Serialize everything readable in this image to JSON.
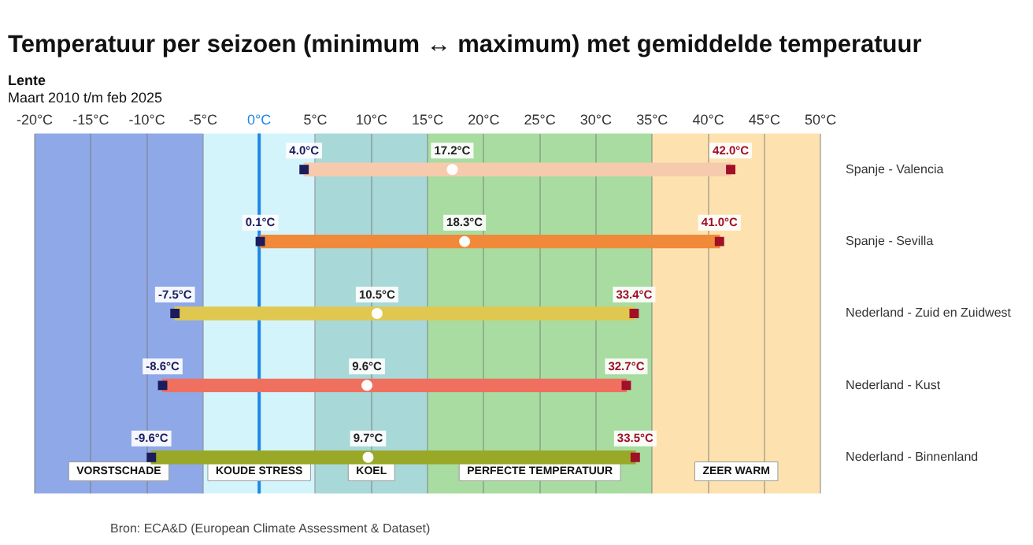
{
  "chart_data": {
    "type": "bar",
    "orientation": "horizontal",
    "title": "Temperatuur per seizoen (minimum ↔ maximum) met gemiddelde temperatuur",
    "subtitle": "Lente",
    "annotations": [
      "Maart 2010 t/m feb 2025",
      "Bron: ECA&D (European Climate Assessment & Dataset)"
    ],
    "categories": [
      "Spanje - Valencia",
      "Spanje - Sevilla",
      "Nederland - Zuid en Zuidwest",
      "Nederland - Kust",
      "Nederland - Binnenland"
    ],
    "xlim": [
      -20,
      50
    ],
    "xticks": [
      {
        "value": -20,
        "label": "-20°C"
      },
      {
        "value": -15,
        "label": "-15°C"
      },
      {
        "value": -10,
        "label": "-10°C"
      },
      {
        "value": -5,
        "label": "-5°C"
      },
      {
        "value": 0,
        "label": "0°C"
      },
      {
        "value": 5,
        "label": "5°C"
      },
      {
        "value": 10,
        "label": "10°C"
      },
      {
        "value": 15,
        "label": "15°C"
      },
      {
        "value": 20,
        "label": "20°C"
      },
      {
        "value": 25,
        "label": "25°C"
      },
      {
        "value": 30,
        "label": "30°C"
      },
      {
        "value": 35,
        "label": "35°C"
      },
      {
        "value": 40,
        "label": "40°C"
      },
      {
        "value": 45,
        "label": "45°C"
      },
      {
        "value": 50,
        "label": "50°C"
      }
    ],
    "grid": "x",
    "series": [
      {
        "colors": [
          "#f6cbad",
          "#f08a3a",
          "#e0c850",
          "#f07060",
          "#9aa828"
        ],
        "base": [
          4.0,
          0.1,
          -7.5,
          -8.6,
          -9.6
        ],
        "values": [
          38.0,
          40.9,
          40.9,
          41.3,
          43.1
        ]
      },
      {
        "type": "scatter",
        "color": "#1c1c5c",
        "marker": "square",
        "values": [
          4.0,
          0.1,
          -7.5,
          -8.6,
          -9.6
        ],
        "value_labels": [
          "4.0°C",
          "0.1°C",
          "-7.5°C",
          "-8.6°C",
          "-9.6°C"
        ]
      },
      {
        "type": "scatter",
        "color": "#a01028",
        "marker": "square",
        "values": [
          42.0,
          41.0,
          33.4,
          32.7,
          33.5
        ],
        "value_labels": [
          "42.0°C",
          "41.0°C",
          "33.4°C",
          "32.7°C",
          "33.5°C"
        ]
      },
      {
        "type": "scatter",
        "color": "#ffffff",
        "marker": "circle",
        "values": [
          17.2,
          18.3,
          10.5,
          9.6,
          9.7
        ],
        "value_labels": [
          "17.2°C",
          "18.3°C",
          "10.5°C",
          "9.6°C",
          "9.7°C"
        ]
      }
    ],
    "ref_lines": [
      {
        "axis": "x",
        "value": 0,
        "color": "#1e88e5"
      }
    ],
    "bands": [
      {
        "axis": "x",
        "from": -20,
        "to": -5,
        "label": "VORSTSCHADE",
        "color": "#8fa8e8"
      },
      {
        "axis": "x",
        "from": -5,
        "to": 5,
        "label": "KOUDE STRESS",
        "color": "#d4f4fc"
      },
      {
        "axis": "x",
        "from": 5,
        "to": 15,
        "label": "KOEL",
        "color": "#a8d8d8"
      },
      {
        "axis": "x",
        "from": 15,
        "to": 35,
        "label": "PERFECTE TEMPERATUUR",
        "color": "#a8dca0"
      },
      {
        "axis": "x",
        "from": 35,
        "to": 50,
        "label": "ZEER WARM",
        "color": "#fde2b0"
      }
    ]
  }
}
